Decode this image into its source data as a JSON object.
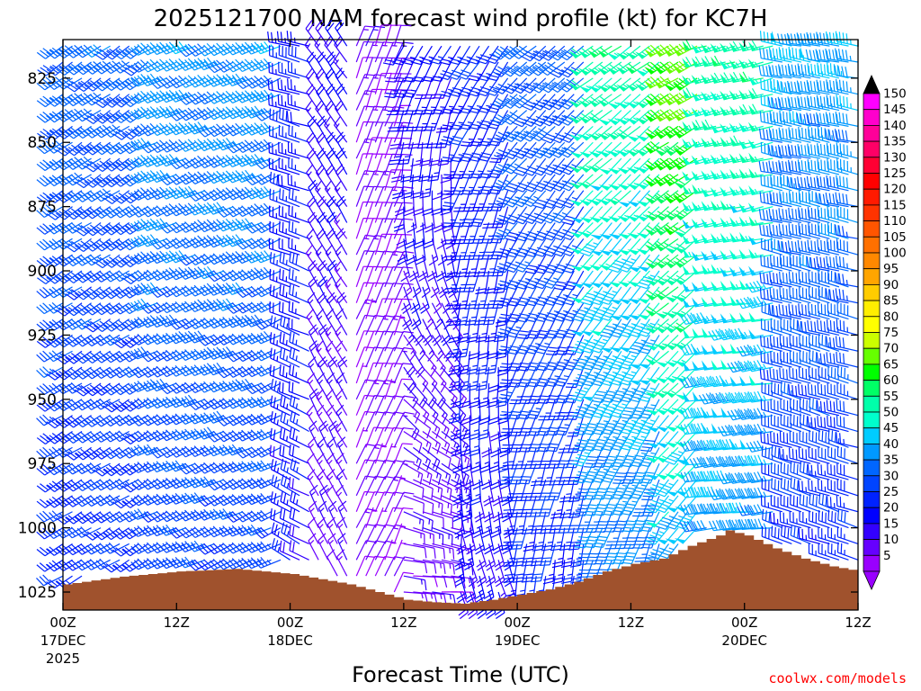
{
  "chart_data": {
    "type": "wind-barb-time-height",
    "title": "2025121700 NAM forecast wind profile (kt) for KC7H",
    "xlabel": "Forecast Time (UTC)",
    "credit": "coolwx.com/models",
    "ylabel": "",
    "pressure_ticks": [
      "825",
      "850",
      "875",
      "900",
      "925",
      "950",
      "975",
      "1000",
      "1025"
    ],
    "pressure_range_hpa": [
      810,
      1032
    ],
    "time_range_hours": [
      0,
      84
    ],
    "time_ticks": [
      {
        "hour": 0,
        "top": "00Z",
        "mid": "17DEC",
        "bot": "2025"
      },
      {
        "hour": 12,
        "top": "12Z",
        "mid": "",
        "bot": ""
      },
      {
        "hour": 24,
        "top": "00Z",
        "mid": "18DEC",
        "bot": ""
      },
      {
        "hour": 36,
        "top": "12Z",
        "mid": "",
        "bot": ""
      },
      {
        "hour": 48,
        "top": "00Z",
        "mid": "19DEC",
        "bot": ""
      },
      {
        "hour": 60,
        "top": "12Z",
        "mid": "",
        "bot": ""
      },
      {
        "hour": 72,
        "top": "00Z",
        "mid": "20DEC",
        "bot": ""
      },
      {
        "hour": 84,
        "top": "12Z",
        "mid": "",
        "bot": ""
      }
    ],
    "surface_pressure": {
      "hours": [
        0,
        3,
        6,
        9,
        12,
        15,
        18,
        21,
        24,
        27,
        30,
        33,
        36,
        39,
        42,
        45,
        48,
        51,
        54,
        57,
        60,
        63,
        66,
        69,
        70,
        72,
        75,
        78,
        81,
        84
      ],
      "hpa": [
        1022,
        1020.5,
        1019,
        1018,
        1017,
        1016.5,
        1016,
        1017,
        1018,
        1020,
        1022,
        1025,
        1028,
        1029,
        1029.5,
        1028,
        1026,
        1024,
        1021,
        1017,
        1014,
        1012,
        1007,
        1003,
        1001,
        1003,
        1008,
        1012,
        1015,
        1017
      ]
    },
    "wind_bands": [
      {
        "h0": 0,
        "h1": 10,
        "dir_low": 240,
        "dir_high": 235,
        "spd_low": 28,
        "spd_high": 37
      },
      {
        "h0": 10,
        "h1": 24,
        "dir_low": 245,
        "dir_high": 245,
        "spd_low": 31,
        "spd_high": 42
      },
      {
        "h0": 24,
        "h1": 27,
        "dir_low": 300,
        "dir_high": 285,
        "spd_low": 22,
        "spd_high": 26
      },
      {
        "h0": 27,
        "h1": 31,
        "dir_low": 335,
        "dir_high": 325,
        "spd_low": 14,
        "spd_high": 20
      },
      {
        "h0": 31,
        "h1": 36,
        "dir_low": 25,
        "dir_high": 20,
        "spd_low": 9,
        "spd_high": 12
      },
      {
        "h0": 36,
        "h1": 42,
        "dir_low": 90,
        "dir_high": 210,
        "spd_low": 12,
        "spd_high": 22
      },
      {
        "h0": 42,
        "h1": 48,
        "dir_low": 160,
        "dir_high": 215,
        "spd_low": 20,
        "spd_high": 28
      },
      {
        "h0": 48,
        "h1": 56,
        "dir_low": 185,
        "dir_high": 230,
        "spd_low": 26,
        "spd_high": 36
      },
      {
        "h0": 56,
        "h1": 64,
        "dir_low": 195,
        "dir_high": 235,
        "spd_low": 36,
        "spd_high": 58
      },
      {
        "h0": 64,
        "h1": 68,
        "dir_low": 215,
        "dir_high": 240,
        "spd_low": 42,
        "spd_high": 72
      },
      {
        "h0": 68,
        "h1": 76,
        "dir_low": 265,
        "dir_high": 255,
        "spd_low": 40,
        "spd_high": 58
      },
      {
        "h0": 76,
        "h1": 85,
        "dir_low": 290,
        "dir_high": 280,
        "spd_low": 25,
        "spd_high": 45
      }
    ],
    "time_step_hours": 1,
    "pressure_step_hpa": 6.25,
    "colorbar": {
      "labels": [
        "150",
        "145",
        "140",
        "135",
        "130",
        "125",
        "120",
        "115",
        "110",
        "105",
        "100",
        "95",
        "90",
        "85",
        "80",
        "75",
        "70",
        "65",
        "60",
        "55",
        "50",
        "45",
        "40",
        "35",
        "30",
        "25",
        "20",
        "15",
        "10",
        "5"
      ],
      "colors": [
        "#ff00ff",
        "#ff00cc",
        "#ff0099",
        "#ff0066",
        "#ff0033",
        "#ff0000",
        "#ff1a00",
        "#ff3300",
        "#ff5500",
        "#ff7000",
        "#ff8800",
        "#ffa500",
        "#ffcc00",
        "#ffee00",
        "#ffff00",
        "#ccff00",
        "#66ff00",
        "#00ff00",
        "#00ff66",
        "#00ffaa",
        "#00ffcc",
        "#00ccff",
        "#0099ff",
        "#0066ff",
        "#0044ff",
        "#0022ff",
        "#0000ff",
        "#3300ff",
        "#6600ff",
        "#9900ff"
      ],
      "top_arrow_color": "#000000",
      "bottom_arrow_color": "#9900ff"
    },
    "ground_color": "#a0522d"
  }
}
